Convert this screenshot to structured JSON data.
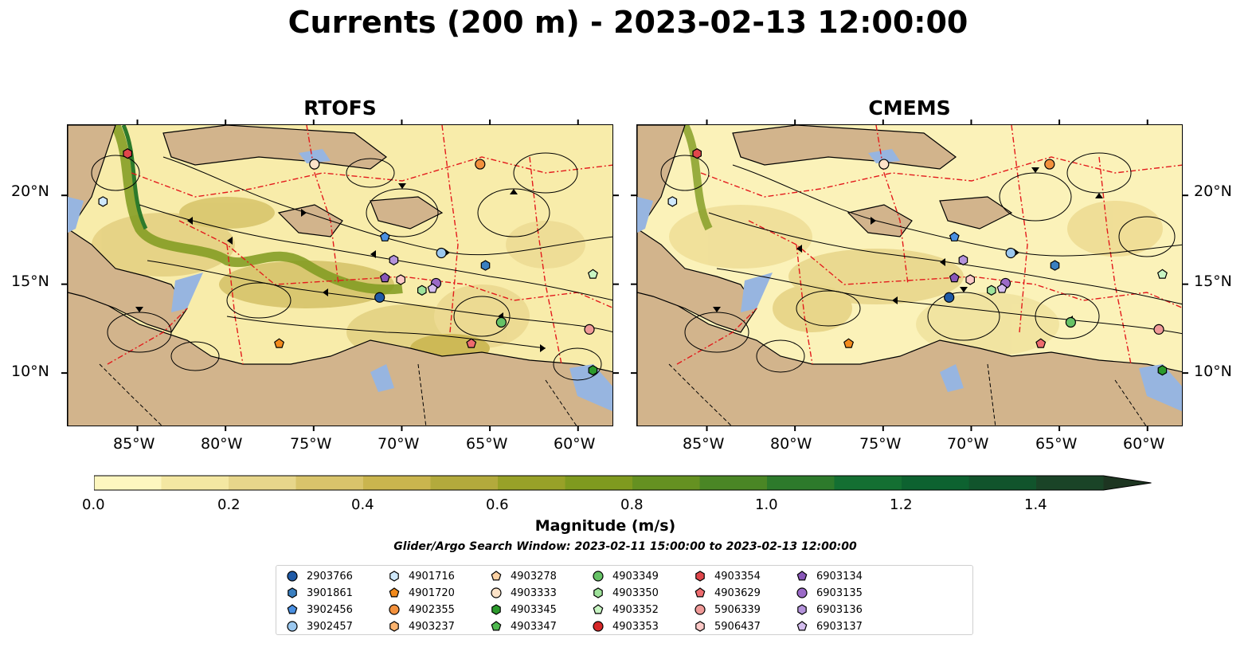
{
  "title": "Currents (200 m) - 2023-02-13 12:00:00",
  "panels": [
    {
      "title": "RTOFS"
    },
    {
      "title": "CMEMS"
    }
  ],
  "axes": {
    "lon_ticks": [
      "85°W",
      "80°W",
      "75°W",
      "70°W",
      "65°W",
      "60°W"
    ],
    "lat_ticks": [
      "20°N",
      "15°N",
      "10°N"
    ]
  },
  "colorbar": {
    "label": "Magnitude (m/s)",
    "ticks": [
      "0.0",
      "0.2",
      "0.4",
      "0.6",
      "0.8",
      "1.0",
      "1.2",
      "1.4"
    ],
    "range": [
      0.0,
      1.5
    ],
    "extend": "max",
    "colors": [
      "#fdf6bf",
      "#f4e7a2",
      "#e7d68b",
      "#d9c46b",
      "#cab54e",
      "#b3aa3c",
      "#98a128",
      "#7f9a1f",
      "#659121",
      "#4a8625",
      "#2d7a2b",
      "#146f32",
      "#0d6230",
      "#11542c",
      "#1a4427",
      "#1d3521"
    ]
  },
  "search_window": "Glider/Argo Search Window: 2023-02-11 15:00:00 to 2023-02-13 12:00:00",
  "colors": {
    "land": "#d2b48c",
    "water": "#97b5e0",
    "eez": "#e31a1c",
    "streamline": "#000000"
  },
  "legend": {
    "items": [
      {
        "label": "2903766",
        "marker": "circle",
        "color": "#1f5aa6"
      },
      {
        "label": "3901861",
        "marker": "hexagon",
        "color": "#3a7fc0"
      },
      {
        "label": "3902456",
        "marker": "pentagon",
        "color": "#4a90e2"
      },
      {
        "label": "3902457",
        "marker": "circle",
        "color": "#9bc8ef"
      },
      {
        "label": "4901716",
        "marker": "hexagon",
        "color": "#cfe8fb"
      },
      {
        "label": "4901720",
        "marker": "pentagon",
        "color": "#f28a1c"
      },
      {
        "label": "4902355",
        "marker": "circle",
        "color": "#f3913d"
      },
      {
        "label": "4903237",
        "marker": "hexagon",
        "color": "#fbb36f"
      },
      {
        "label": "4903278",
        "marker": "pentagon",
        "color": "#fcd1a3"
      },
      {
        "label": "4903333",
        "marker": "circle",
        "color": "#fde3c8"
      },
      {
        "label": "4903345",
        "marker": "hexagon",
        "color": "#2c9a2c"
      },
      {
        "label": "4903347",
        "marker": "pentagon",
        "color": "#4fb84f"
      },
      {
        "label": "4903349",
        "marker": "circle",
        "color": "#66c266"
      },
      {
        "label": "4903350",
        "marker": "hexagon",
        "color": "#9ee29a"
      },
      {
        "label": "4903352",
        "marker": "pentagon",
        "color": "#c8f5c3"
      },
      {
        "label": "4903353",
        "marker": "circle",
        "color": "#d62728"
      },
      {
        "label": "4903354",
        "marker": "hexagon",
        "color": "#e0464b"
      },
      {
        "label": "4903629",
        "marker": "pentagon",
        "color": "#ee6b6e"
      },
      {
        "label": "5906339",
        "marker": "circle",
        "color": "#f09a98"
      },
      {
        "label": "5906437",
        "marker": "hexagon",
        "color": "#fcc9c7"
      },
      {
        "label": "6903134",
        "marker": "pentagon",
        "color": "#8856b8"
      },
      {
        "label": "6903135",
        "marker": "circle",
        "color": "#9b6ac7"
      },
      {
        "label": "6903136",
        "marker": "hexagon",
        "color": "#b493db"
      },
      {
        "label": "6903137",
        "marker": "pentagon",
        "color": "#d4bdee"
      }
    ]
  },
  "platforms": [
    {
      "id": "2903766",
      "lon": -71.3,
      "lat": 14.3
    },
    {
      "id": "3901861",
      "lon": -65.3,
      "lat": 16.1
    },
    {
      "id": "3902456",
      "lon": -71.0,
      "lat": 17.7
    },
    {
      "id": "3902457",
      "lon": -67.8,
      "lat": 16.8
    },
    {
      "id": "4901716",
      "lon": -87.0,
      "lat": 19.7
    },
    {
      "id": "4901720",
      "lon": -77.0,
      "lat": 11.7
    },
    {
      "id": "4902355",
      "lon": -65.6,
      "lat": 21.8
    },
    {
      "id": "4903333",
      "lon": -75.0,
      "lat": 21.8
    },
    {
      "id": "4903345",
      "lon": -59.2,
      "lat": 10.2
    },
    {
      "id": "4903349",
      "lon": -64.4,
      "lat": 12.9
    },
    {
      "id": "4903350",
      "lon": -68.9,
      "lat": 14.7
    },
    {
      "id": "4903352",
      "lon": -59.2,
      "lat": 15.6
    },
    {
      "id": "4903354",
      "lon": -85.6,
      "lat": 22.4
    },
    {
      "id": "4903629",
      "lon": -66.1,
      "lat": 11.7
    },
    {
      "id": "5906339",
      "lon": -59.4,
      "lat": 12.5
    },
    {
      "id": "5906437",
      "lon": -70.1,
      "lat": 15.3
    },
    {
      "id": "6903134",
      "lon": -71.0,
      "lat": 15.4
    },
    {
      "id": "6903135",
      "lon": -68.1,
      "lat": 15.1
    },
    {
      "id": "6903136",
      "lon": -70.5,
      "lat": 16.4
    },
    {
      "id": "6903137",
      "lon": -68.3,
      "lat": 14.8
    }
  ]
}
